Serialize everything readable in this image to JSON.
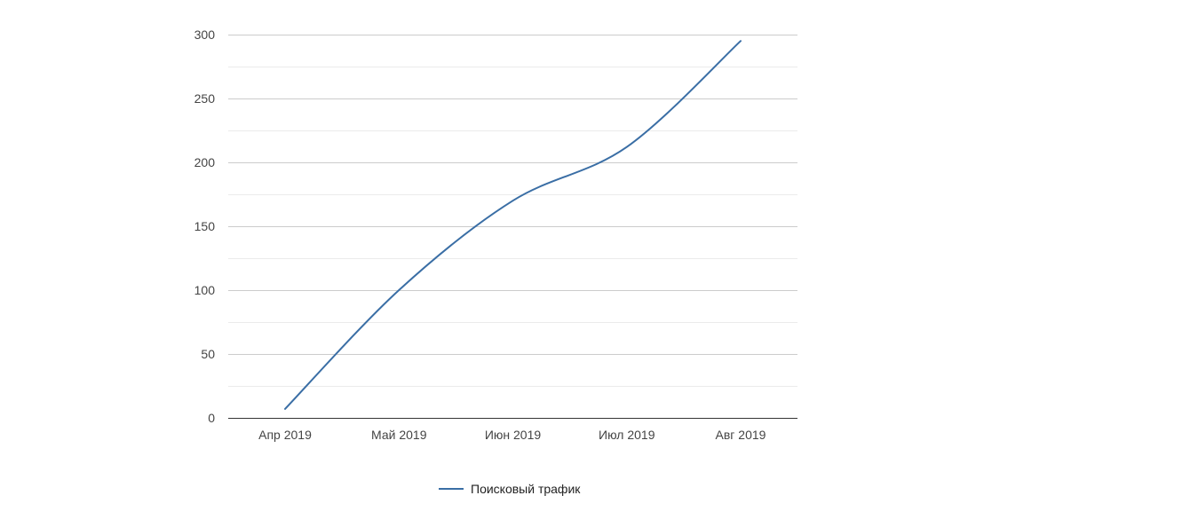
{
  "chart_data": {
    "type": "line",
    "title": "",
    "xlabel": "",
    "ylabel": "",
    "categories": [
      "Апр 2019",
      "Май 2019",
      "Июн 2019",
      "Июл 2019",
      "Авг 2019"
    ],
    "series": [
      {
        "name": "Поисковый трафик",
        "color": "#3a6ea5",
        "values": [
          7,
          100,
          170,
          212,
          295
        ]
      }
    ],
    "ylim": [
      0,
      300
    ],
    "yticks": [
      0,
      50,
      100,
      150,
      200,
      250,
      300
    ],
    "ytick_labels": [
      "0",
      "50",
      "100",
      "150",
      "200",
      "250",
      "300"
    ],
    "grid": true,
    "minor_grid": true,
    "smooth": true,
    "legend_position": "bottom"
  }
}
